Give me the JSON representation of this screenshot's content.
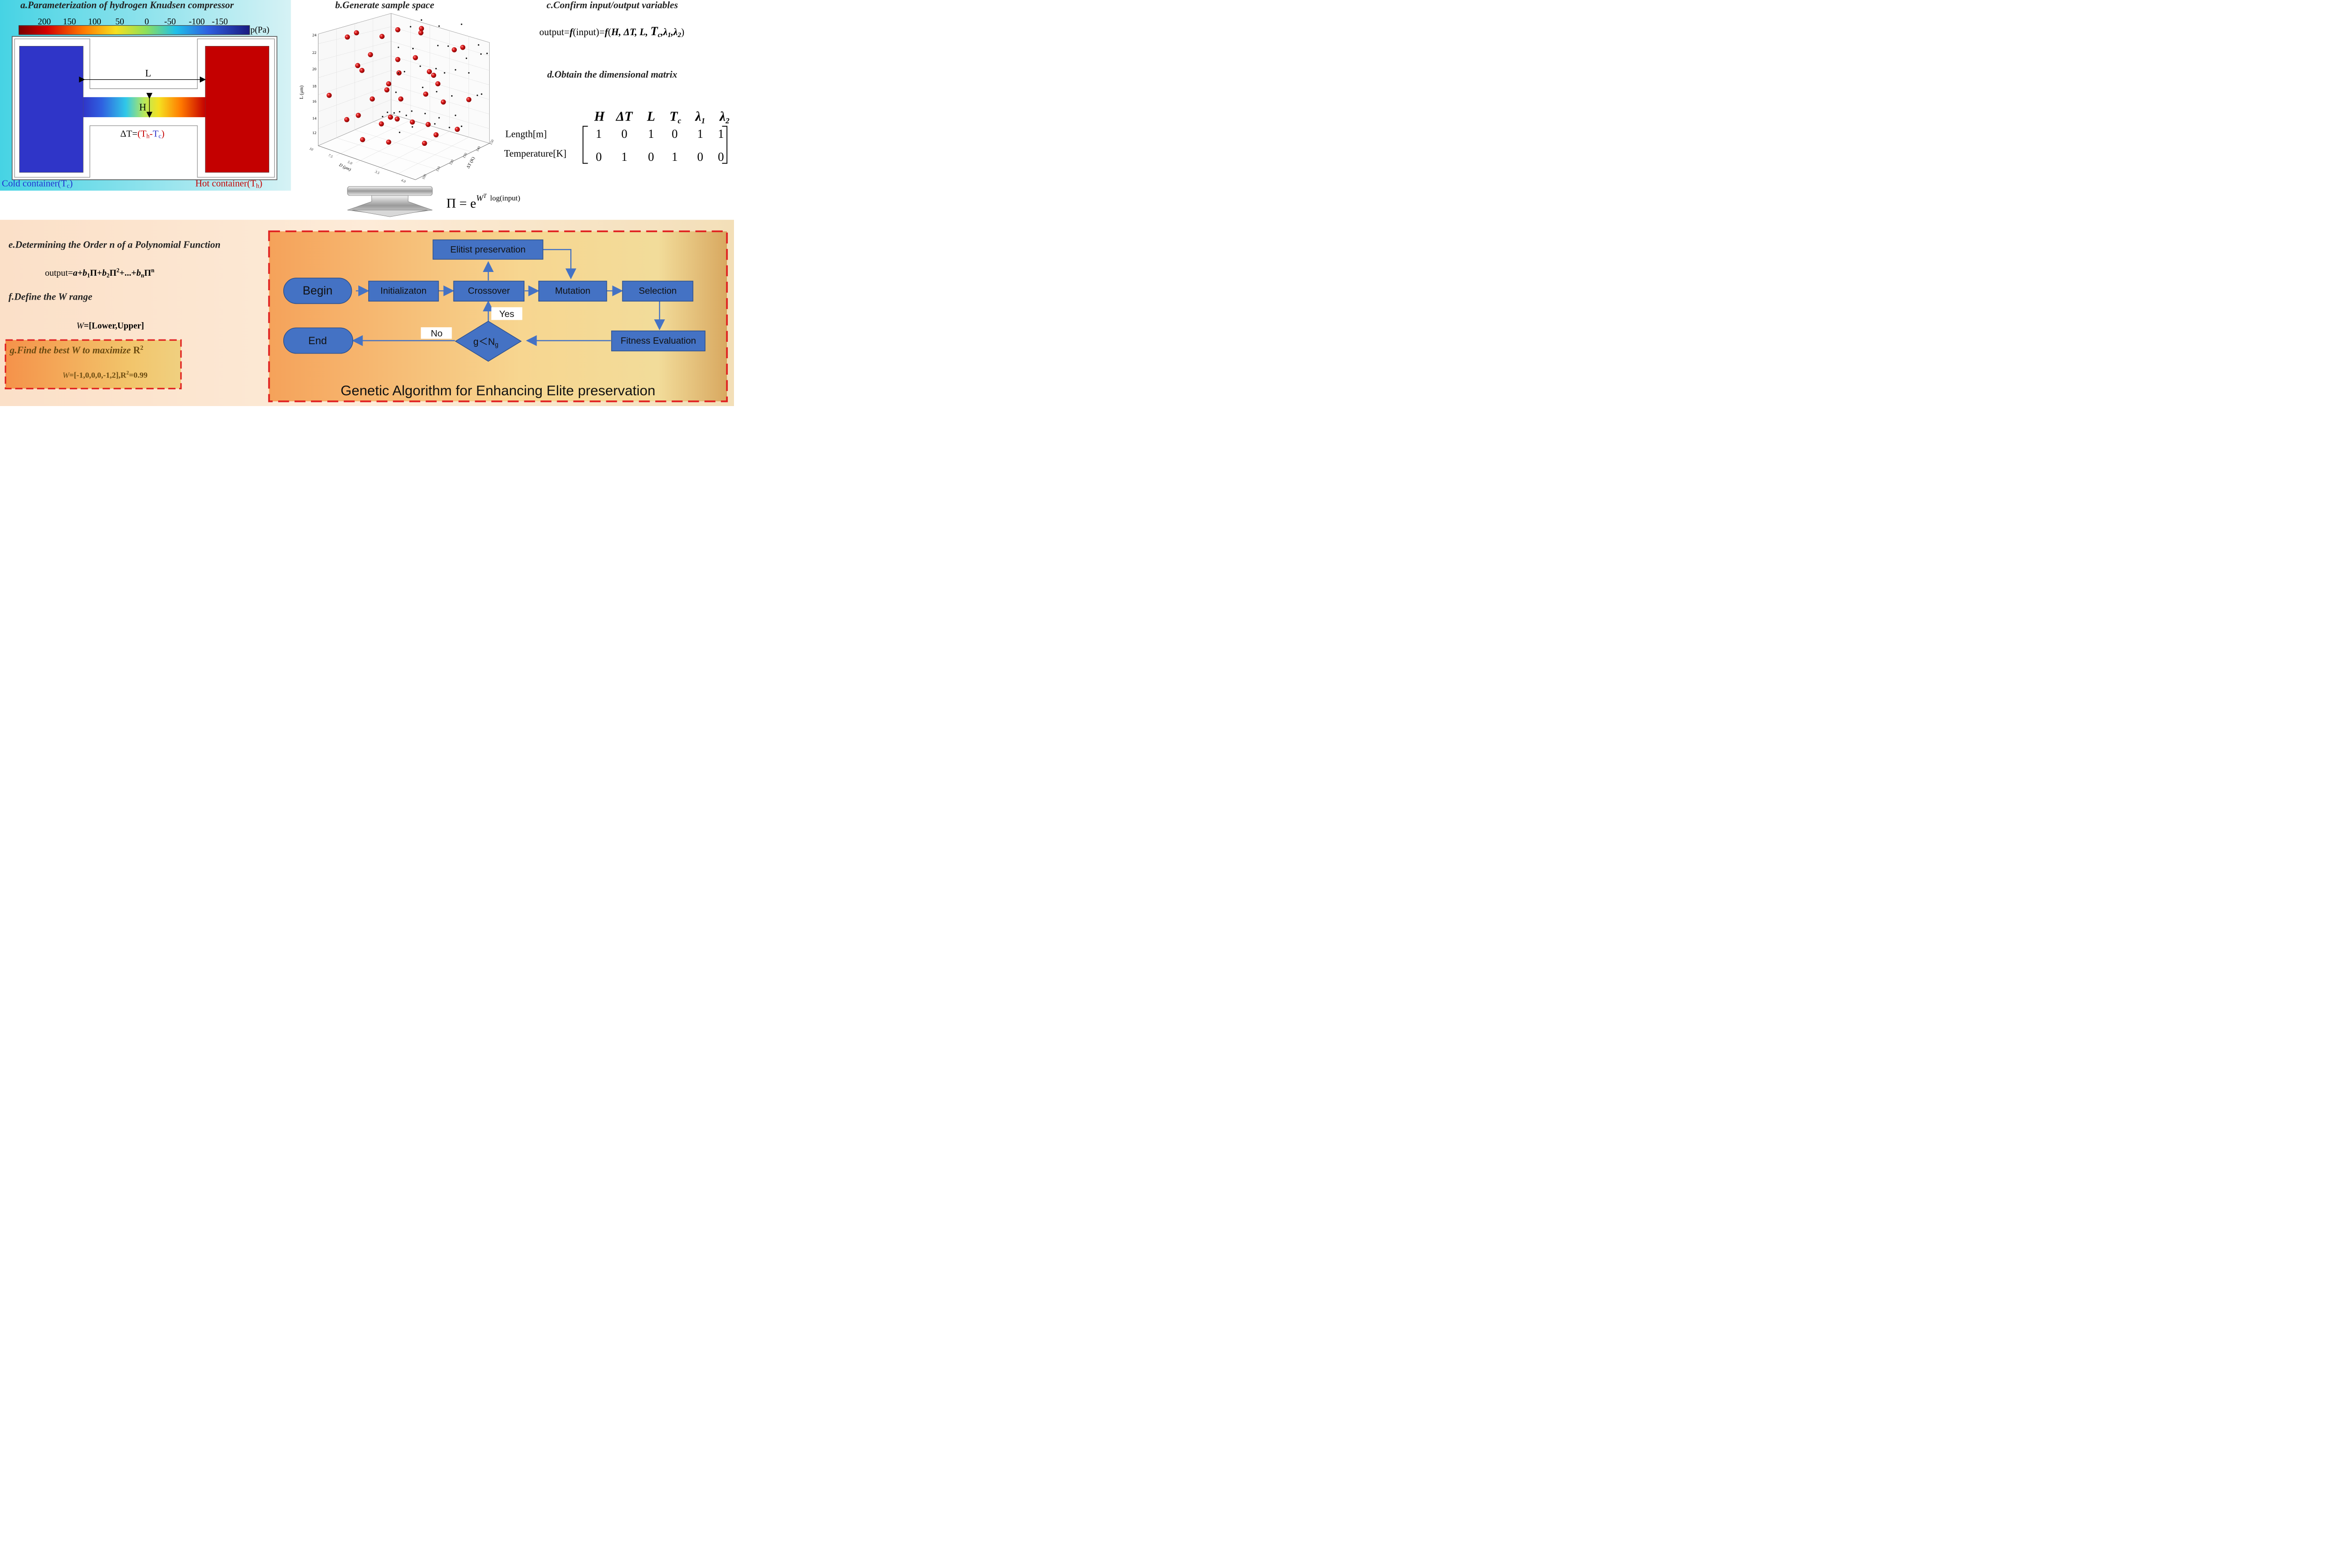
{
  "panel_a": {
    "title": "a.Parameterization of hydrogen Knudsen compressor",
    "colorbar_ticks": [
      "200",
      "150",
      "100",
      "50",
      "0",
      "-50",
      "-100",
      "-150"
    ],
    "colorbar_unit": "p(Pa)",
    "label_L": "L",
    "label_H": "H",
    "deltaT": {
      "prefix": "ΔT=",
      "open": "(",
      "th": "T",
      "th_sub": "h",
      "minus": "-",
      "tc": "T",
      "tc_sub": "c",
      "close": ")"
    },
    "cold": {
      "text": "Cold container(T",
      "sub": "c",
      "close": ")"
    },
    "hot": {
      "text": "Hot container(T",
      "sub": "h",
      "close": ")"
    },
    "colors": {
      "cold": "#2f35c8",
      "hot": "#c40000",
      "bg_left": "#4fd6e6",
      "bg_right": "#cdeff3"
    }
  },
  "panel_b": {
    "title": "b.Generate sample space",
    "z_axis_label": "L (μm)",
    "z_ticks": [
      "24",
      "22",
      "20",
      "18",
      "16",
      "14",
      "12"
    ],
    "d_axis_label": "D (μm)",
    "d_ticks": [
      "10",
      "7.5",
      "5.0",
      "3.5",
      "4.0"
    ],
    "t_axis_label": "ΔT (K)",
    "t_ticks": [
      "150",
      "140",
      "130",
      "120",
      "110",
      "100"
    ],
    "pi_formula": {
      "base": "Π = e",
      "exp": "W",
      "exp_sup": "T",
      "tail": "log(input)"
    }
  },
  "panel_c": {
    "title": "c.Confirm input/output variables",
    "formula": {
      "a": "output=",
      "f1": "f",
      "b": "(input)=",
      "f2": "f",
      "c": "(",
      "vars": "H, ΔT, L, ",
      "tc": "T",
      "tc_sub": "c",
      "l1": ",λ",
      "l1_sub": "1",
      "l2": ",λ",
      "l2_sub": "2",
      "close": ")"
    }
  },
  "panel_d": {
    "title": "d.Obtain the dimensional matrix",
    "headers": [
      {
        "t": "H",
        "s": ""
      },
      {
        "t": "ΔT",
        "s": ""
      },
      {
        "t": "L",
        "s": ""
      },
      {
        "t": "T",
        "s": "c"
      },
      {
        "t": "λ",
        "s": "1"
      },
      {
        "t": "λ",
        "s": "2"
      }
    ],
    "rows": [
      {
        "label": "Length[m]",
        "values": [
          "1",
          "0",
          "1",
          "0",
          "1",
          "1"
        ]
      },
      {
        "label": "Temperature[K]",
        "values": [
          "0",
          "1",
          "0",
          "1",
          "0",
          "0"
        ]
      }
    ]
  },
  "panel_e": {
    "title": "e.Determining the Order n of a Polynomial Function",
    "formula": {
      "a": "output=",
      "b": "a+b",
      "b_sub": "1",
      "c": "Π+",
      "d": "b",
      "d_sub": "2",
      "e": "Π",
      "e_sup": "2",
      "f": "+...+",
      "g": "b",
      "g_sub": "n",
      "h": "Π",
      "h_sup": "n"
    }
  },
  "panel_f": {
    "title": "f.Define the W range",
    "formula": {
      "w": "W",
      "rest": "=[Lower,Upper]"
    }
  },
  "panel_g": {
    "title": {
      "text": "g.Find the best W to maximize ",
      "r": "R",
      "sup": "2"
    },
    "result": {
      "w": "W",
      "rest": "=[-1,0,0,0,-1,2],R",
      "sup": "2",
      "tail": "=0.99"
    }
  },
  "ga": {
    "nodes": {
      "begin": "Begin",
      "init": "Initializaton",
      "crossover": "Crossover",
      "mutation": "Mutation",
      "selection": "Selection",
      "elitist": "Elitist preservation",
      "fitness": "Fitness Evaluation",
      "end": "End",
      "decision": {
        "g": "g＜N",
        "sub": "g"
      }
    },
    "yes": "Yes",
    "no": "No",
    "caption": "Genetic Algorithm for Enhancing Elite preservation",
    "colors": {
      "node": "#4472c4",
      "node_border": "#2f528f",
      "arrow": "#4472c4",
      "dash": "#e02020"
    }
  }
}
